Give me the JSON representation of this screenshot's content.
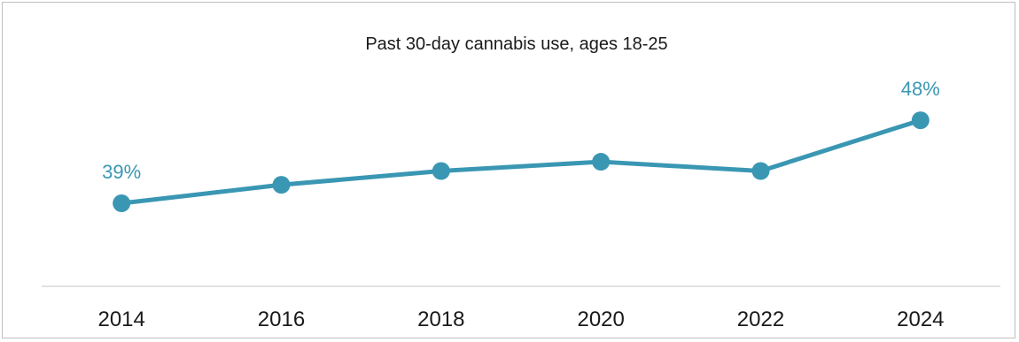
{
  "chart_data": {
    "type": "line",
    "title": "Past 30-day cannabis use, ages 18-25",
    "xlabel": "",
    "ylabel": "",
    "categories": [
      "2014",
      "2016",
      "2018",
      "2020",
      "2022",
      "2024"
    ],
    "series": [
      {
        "values": [
          39,
          41,
          42.5,
          43.5,
          42.5,
          48
        ],
        "data_labels": [
          "39%",
          "",
          "",
          "",
          "",
          "48%"
        ]
      }
    ],
    "ylim": [
      30,
      55
    ],
    "grid": false,
    "legend": "none",
    "colors": {
      "line": "#3a97b3",
      "axis": "#d9d9d9",
      "text": "#1a1a1a",
      "border": "#bfbfbf"
    }
  }
}
